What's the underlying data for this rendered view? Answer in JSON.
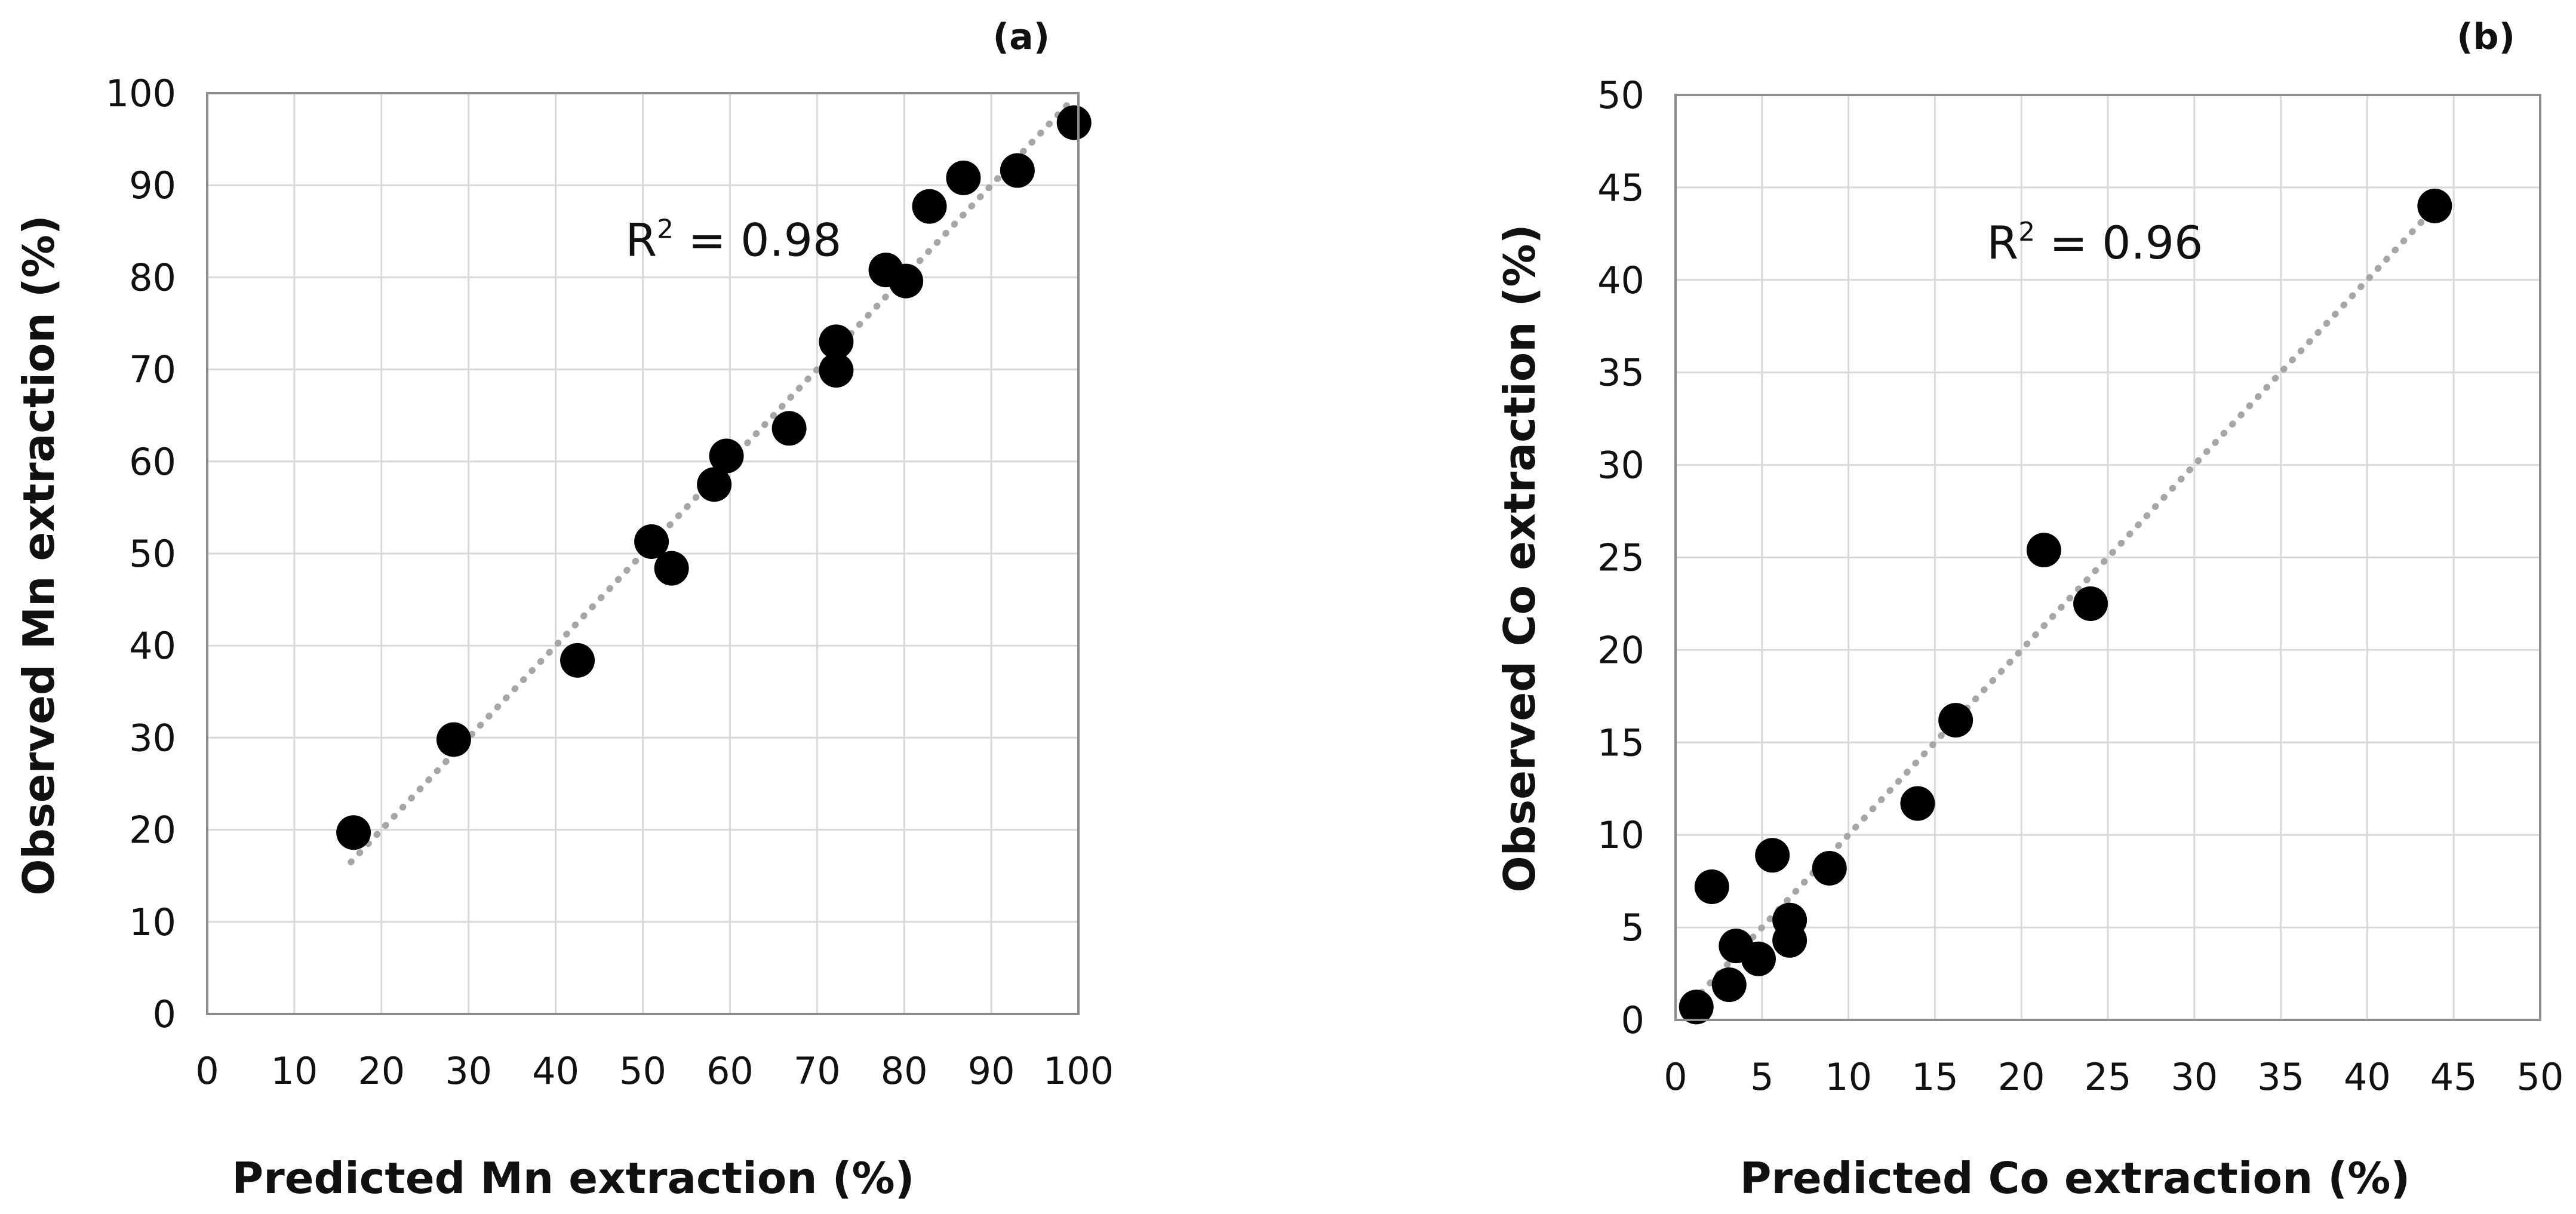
{
  "chart_data": [
    {
      "type": "scatter",
      "panel_label": "(a)",
      "xlabel": "Predicted Mn extraction (%)",
      "ylabel": "Observed Mn extraction (%)",
      "xlim": [
        0,
        100
      ],
      "ylim": [
        0,
        100
      ],
      "xticks": [
        "0",
        "10",
        "20",
        "30",
        "40",
        "50",
        "60",
        "70",
        "80",
        "90",
        "100"
      ],
      "yticks": [
        "0",
        "10",
        "20",
        "30",
        "40",
        "50",
        "60",
        "70",
        "80",
        "90",
        "100"
      ],
      "grid": true,
      "annotation": {
        "prefix": "R",
        "sup": "2",
        "text": " = 0.98",
        "x": 48,
        "y": 84
      },
      "trendline": {
        "from": [
          16.5,
          16.5
        ],
        "to": [
          99.5,
          99.5
        ]
      },
      "points": [
        {
          "x": 16.8,
          "y": 19.7
        },
        {
          "x": 28.3,
          "y": 29.8
        },
        {
          "x": 42.5,
          "y": 38.4
        },
        {
          "x": 51.0,
          "y": 51.3
        },
        {
          "x": 53.3,
          "y": 48.4
        },
        {
          "x": 58.2,
          "y": 57.5
        },
        {
          "x": 59.6,
          "y": 60.6
        },
        {
          "x": 66.8,
          "y": 63.6
        },
        {
          "x": 72.2,
          "y": 73.0
        },
        {
          "x": 72.2,
          "y": 69.9
        },
        {
          "x": 77.9,
          "y": 80.8
        },
        {
          "x": 80.2,
          "y": 79.6
        },
        {
          "x": 82.9,
          "y": 87.7
        },
        {
          "x": 86.8,
          "y": 90.8
        },
        {
          "x": 93.0,
          "y": 91.6
        },
        {
          "x": 99.5,
          "y": 96.8
        }
      ]
    },
    {
      "type": "scatter",
      "panel_label": "(b)",
      "xlabel": "Predicted Co extraction (%)",
      "ylabel": "Observed Co extraction (%)",
      "xlim": [
        0,
        50
      ],
      "ylim": [
        0,
        50
      ],
      "xticks": [
        "0",
        "5",
        "10",
        "15",
        "20",
        "25",
        "30",
        "35",
        "40",
        "45",
        "50"
      ],
      "yticks": [
        "0",
        "5",
        "10",
        "15",
        "20",
        "25",
        "30",
        "35",
        "40",
        "45",
        "50"
      ],
      "grid": true,
      "annotation": {
        "prefix": "R",
        "sup": "2",
        "text": " = 0.96",
        "x": 18,
        "y": 42
      },
      "trendline": {
        "from": [
          1.0,
          1.0
        ],
        "to": [
          44.0,
          44.0
        ]
      },
      "points": [
        {
          "x": 1.2,
          "y": 0.7
        },
        {
          "x": 2.1,
          "y": 7.2
        },
        {
          "x": 3.1,
          "y": 1.9
        },
        {
          "x": 3.5,
          "y": 4.0
        },
        {
          "x": 4.8,
          "y": 3.3
        },
        {
          "x": 5.6,
          "y": 8.9
        },
        {
          "x": 6.6,
          "y": 5.4
        },
        {
          "x": 6.6,
          "y": 4.3
        },
        {
          "x": 8.9,
          "y": 8.2
        },
        {
          "x": 14.0,
          "y": 11.7
        },
        {
          "x": 16.2,
          "y": 16.2
        },
        {
          "x": 21.3,
          "y": 25.4
        },
        {
          "x": 24.0,
          "y": 22.5
        },
        {
          "x": 43.9,
          "y": 44.0
        }
      ]
    }
  ]
}
